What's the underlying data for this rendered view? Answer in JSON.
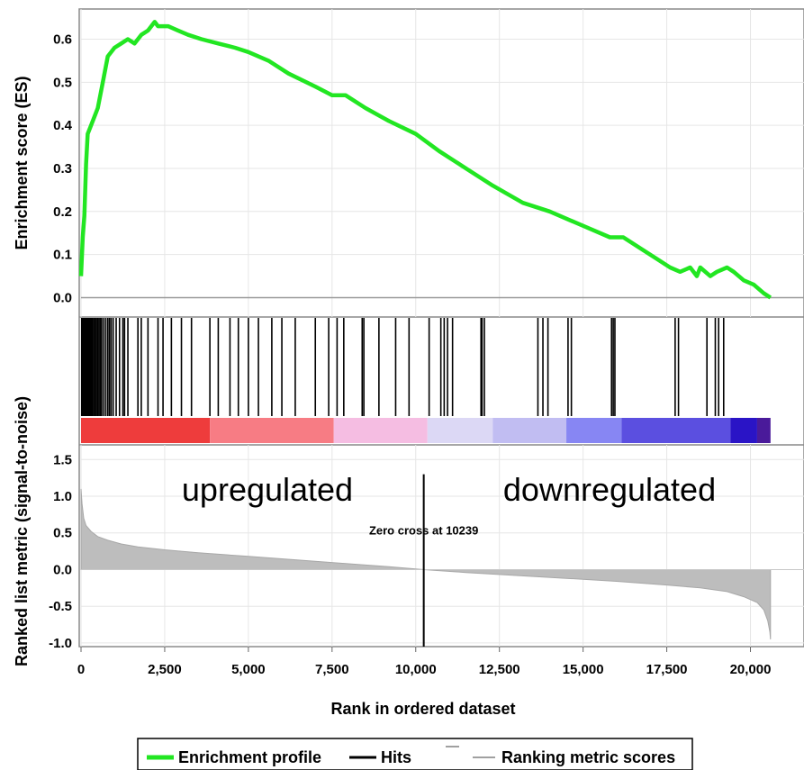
{
  "chart_data": {
    "type": "line",
    "x_max_rank": 20600,
    "x_axis": {
      "label": "Rank in ordered dataset",
      "range": [
        0,
        21600
      ],
      "ticks": [
        0,
        2500,
        5000,
        7500,
        10000,
        12500,
        15000,
        17500,
        20000
      ],
      "tick_labels": [
        "0",
        "2,500",
        "5,000",
        "7,500",
        "10,000",
        "12,500",
        "15,000",
        "17,500",
        "20,000"
      ]
    },
    "enrichment_panel": {
      "ylabel": "Enrichment score (ES)",
      "ylim": [
        -0.045,
        0.67
      ],
      "yticks": [
        0.0,
        0.1,
        0.2,
        0.3,
        0.4,
        0.5,
        0.6
      ],
      "ytick_labels": [
        "0.0",
        "0.1",
        "0.2",
        "0.3",
        "0.4",
        "0.5",
        "0.6"
      ],
      "series": {
        "name": "Enrichment profile",
        "color": "#22e622",
        "x": [
          0,
          50,
          100,
          150,
          200,
          300,
          400,
          500,
          650,
          800,
          1000,
          1200,
          1400,
          1600,
          1800,
          2000,
          2200,
          2300,
          2600,
          2900,
          3200,
          3600,
          4100,
          4600,
          5000,
          5600,
          6200,
          7000,
          7500,
          7900,
          8500,
          9200,
          10000,
          10700,
          11500,
          12300,
          13200,
          14000,
          14600,
          15200,
          15800,
          16200,
          16800,
          17200,
          17600,
          17900,
          18200,
          18400,
          18500,
          18800,
          19000,
          19300,
          19500,
          19800,
          20100,
          20400,
          20600
        ],
        "y": [
          0.05,
          0.14,
          0.19,
          0.31,
          0.38,
          0.4,
          0.42,
          0.44,
          0.5,
          0.56,
          0.58,
          0.59,
          0.6,
          0.59,
          0.61,
          0.62,
          0.64,
          0.63,
          0.63,
          0.62,
          0.61,
          0.6,
          0.59,
          0.58,
          0.57,
          0.55,
          0.52,
          0.49,
          0.47,
          0.47,
          0.44,
          0.41,
          0.38,
          0.34,
          0.3,
          0.26,
          0.22,
          0.2,
          0.18,
          0.16,
          0.14,
          0.14,
          0.11,
          0.09,
          0.07,
          0.06,
          0.07,
          0.05,
          0.07,
          0.05,
          0.06,
          0.07,
          0.06,
          0.04,
          0.03,
          0.01,
          0.0
        ]
      }
    },
    "hits": {
      "name": "Hits",
      "color": "#000000",
      "positions": [
        20,
        40,
        60,
        80,
        100,
        130,
        160,
        190,
        220,
        250,
        280,
        310,
        340,
        380,
        420,
        460,
        500,
        540,
        580,
        620,
        680,
        740,
        800,
        850,
        900,
        960,
        1050,
        1150,
        1250,
        1300,
        1400,
        1700,
        1800,
        2000,
        2300,
        2450,
        2700,
        3000,
        3300,
        3850,
        4100,
        4450,
        4700,
        5000,
        5300,
        5700,
        6000,
        6400,
        7000,
        7400,
        7650,
        7850,
        8400,
        8450,
        8900,
        9400,
        9800,
        10400,
        10750,
        10850,
        10950,
        11100,
        11950,
        11980,
        12050,
        13650,
        13800,
        13950,
        14550,
        14650,
        15850,
        15900,
        15950,
        17750,
        17850,
        18700,
        18950,
        19050,
        19200
      ]
    },
    "color_bar": {
      "segments": [
        {
          "to": 3850,
          "color": "#ee3c3c"
        },
        {
          "to": 7550,
          "color": "#f77c84"
        },
        {
          "to": 10350,
          "color": "#f5bde2"
        },
        {
          "to": 12300,
          "color": "#dcd8f5"
        },
        {
          "to": 14500,
          "color": "#c1bdf2"
        },
        {
          "to": 16150,
          "color": "#8786f3"
        },
        {
          "to": 19400,
          "color": "#5b4fe0"
        },
        {
          "to": 20200,
          "color": "#2a14c6"
        },
        {
          "to": 20600,
          "color": "#4a1a9a"
        }
      ]
    },
    "metric_panel": {
      "ylabel": "Ranked list metric (signal-to-noise)",
      "ylim": [
        -1.05,
        1.7
      ],
      "yticks": [
        -1.0,
        -0.5,
        0.0,
        0.5,
        1.0,
        1.5
      ],
      "ytick_labels": [
        "-1.0",
        "-0.5",
        "0.0",
        "0.5",
        "1.0",
        "1.5"
      ],
      "series": {
        "name": "Ranking metric scores",
        "color": "#bdbdbd",
        "x": [
          0,
          30,
          80,
          150,
          300,
          500,
          800,
          1200,
          1700,
          2500,
          3500,
          5000,
          6500,
          8000,
          9200,
          10239,
          11500,
          13000,
          14500,
          16000,
          17500,
          18500,
          19300,
          19800,
          20200,
          20400,
          20520,
          20580,
          20600
        ],
        "y": [
          1.1,
          0.9,
          0.7,
          0.6,
          0.52,
          0.45,
          0.4,
          0.35,
          0.31,
          0.27,
          0.23,
          0.18,
          0.13,
          0.08,
          0.04,
          0.0,
          -0.04,
          -0.08,
          -0.12,
          -0.16,
          -0.21,
          -0.25,
          -0.3,
          -0.37,
          -0.45,
          -0.55,
          -0.7,
          -0.85,
          -0.95
        ]
      },
      "zero_cross": {
        "rank": 10239,
        "label": "Zero cross at 10239"
      },
      "regions": {
        "left": "upregulated",
        "right": "downregulated"
      }
    },
    "legend": {
      "position": "bottom-center",
      "items": [
        {
          "label": "Enrichment profile",
          "color": "#22e622"
        },
        {
          "label": "Hits",
          "color": "#000000"
        },
        {
          "label": "Ranking metric scores",
          "color": "#a0a0a0"
        }
      ]
    }
  }
}
